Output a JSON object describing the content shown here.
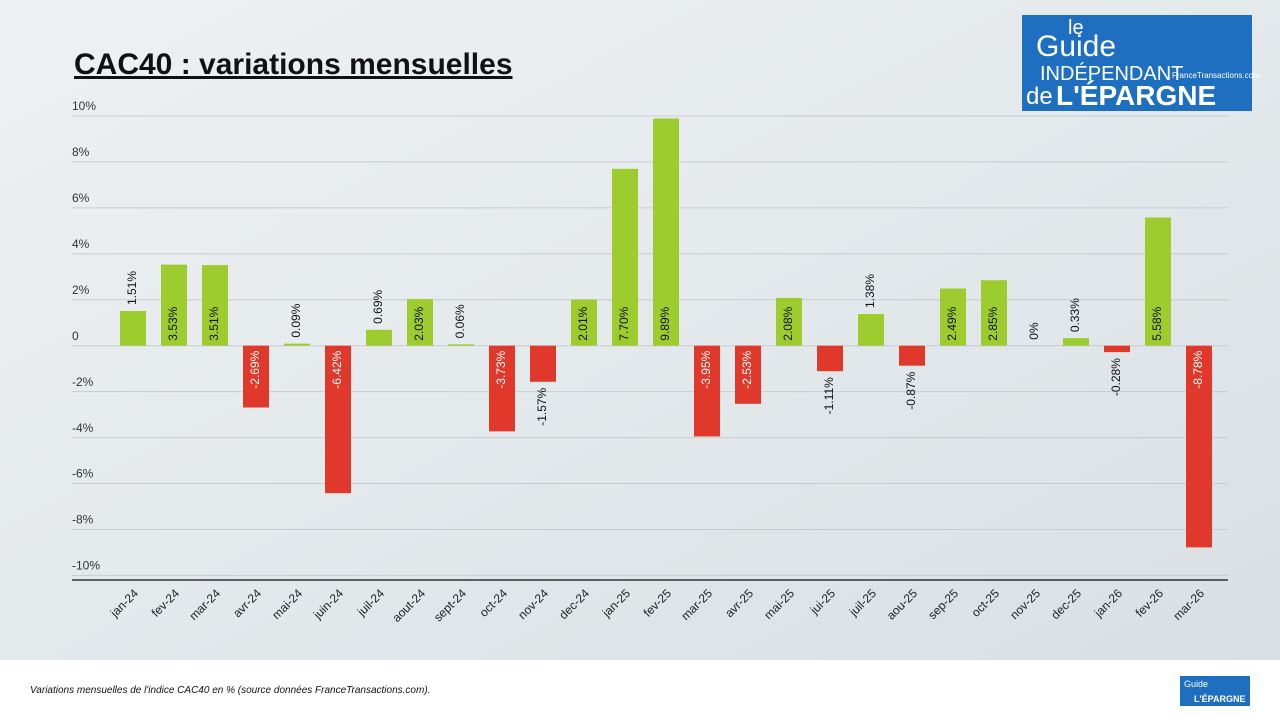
{
  "chart_data": {
    "type": "bar",
    "title": "CAC40 : variations mensuelles",
    "categories": [
      "jan-24",
      "fev-24",
      "mar-24",
      "avr-24",
      "mai-24",
      "juin-24",
      "juil-24",
      "aout-24",
      "sept-24",
      "oct-24",
      "nov-24",
      "dec-24",
      "jan-25",
      "fev-25",
      "mar-25",
      "avr-25",
      "mai-25",
      "jui-25",
      "juil-25",
      "aou-25",
      "sep-25",
      "oct-25",
      "nov-25",
      "dec-25",
      "jan-26",
      "fev-26",
      "mar-26"
    ],
    "values": [
      1.51,
      3.53,
      3.51,
      -2.69,
      0.09,
      -6.42,
      0.69,
      2.03,
      0.06,
      -3.73,
      -1.57,
      2.01,
      7.7,
      9.89,
      -3.95,
      -2.53,
      2.08,
      -1.11,
      1.38,
      -0.87,
      2.49,
      2.85,
      0,
      0.33,
      -0.28,
      5.58,
      -8.78
    ],
    "value_labels": [
      "1.51%",
      "3.53%",
      "3.51%",
      "-2.69%",
      "0.09%",
      "-6.42%",
      "0.69%",
      "2.03%",
      "0.06%",
      "-3.73%",
      "-1.57%",
      "2.01%",
      "7.70%",
      "9.89%",
      "-3.95%",
      "-2.53%",
      "2.08%",
      "-1.11%",
      "1.38%",
      "-0.87%",
      "2.49%",
      "2.85%",
      "0%",
      "0.33%",
      "-0.28%",
      "5.58%",
      "-8.78%"
    ],
    "positive_color": "#9ccc2e",
    "negative_color": "#e0392c",
    "ylim": [
      -10.2,
      10.2
    ],
    "yticks": [
      {
        "value": 10,
        "label": "10%"
      },
      {
        "value": 8,
        "label": "8%"
      },
      {
        "value": 6,
        "label": "6%"
      },
      {
        "value": 4,
        "label": "4%"
      },
      {
        "value": 2,
        "label": "2%"
      },
      0,
      {
        "value": -2,
        "label": "-2%"
      },
      {
        "value": -4,
        "label": "-4%"
      },
      {
        "value": -6,
        "label": "-6%"
      },
      {
        "value": -8,
        "label": "-8%"
      },
      {
        "value": -10,
        "label": "-10%"
      }
    ],
    "grid": true
  },
  "logo": {
    "le": "le",
    "guide": "Guide",
    "independant": "INDÉPENDANT",
    "site": "FranceTransactions.com",
    "de": "de",
    "epargne": "L'ÉPARGNE"
  },
  "caption": "Variations mensuelles de l'indice CAC40 en % (source données FranceTransactions.com)."
}
